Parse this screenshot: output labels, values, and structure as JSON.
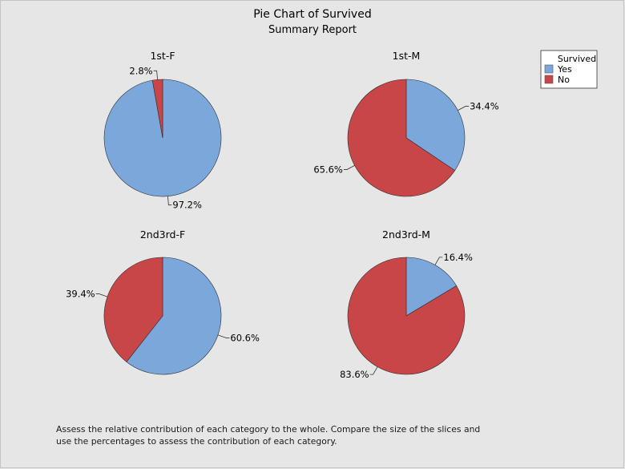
{
  "chart_data": {
    "type": "pie",
    "title": "Pie Chart of Survived",
    "subtitle": "Summary Report",
    "legend": {
      "title": "Survived",
      "placement": "top-right",
      "entries": [
        {
          "label": "Yes",
          "color": "#7ba7db"
        },
        {
          "label": "No",
          "color": "#c84647"
        }
      ]
    },
    "pies": [
      {
        "title": "1st-F",
        "slices": [
          {
            "category": "Yes",
            "value": 97.2,
            "label": "97.2%"
          },
          {
            "category": "No",
            "value": 2.8,
            "label": "2.8%"
          }
        ]
      },
      {
        "title": "1st-M",
        "slices": [
          {
            "category": "Yes",
            "value": 34.4,
            "label": "34.4%"
          },
          {
            "category": "No",
            "value": 65.6,
            "label": "65.6%"
          }
        ]
      },
      {
        "title": "2nd3rd-F",
        "slices": [
          {
            "category": "Yes",
            "value": 60.6,
            "label": "60.6%"
          },
          {
            "category": "No",
            "value": 39.4,
            "label": "39.4%"
          }
        ]
      },
      {
        "title": "2nd3rd-M",
        "slices": [
          {
            "category": "Yes",
            "value": 16.4,
            "label": "16.4%"
          },
          {
            "category": "No",
            "value": 83.6,
            "label": "83.6%"
          }
        ]
      }
    ]
  },
  "note": {
    "line1": "Assess the relative contribution of each category to the whole. Compare the size of the slices and",
    "line2": "use the percentages to assess the contribution of each category."
  }
}
